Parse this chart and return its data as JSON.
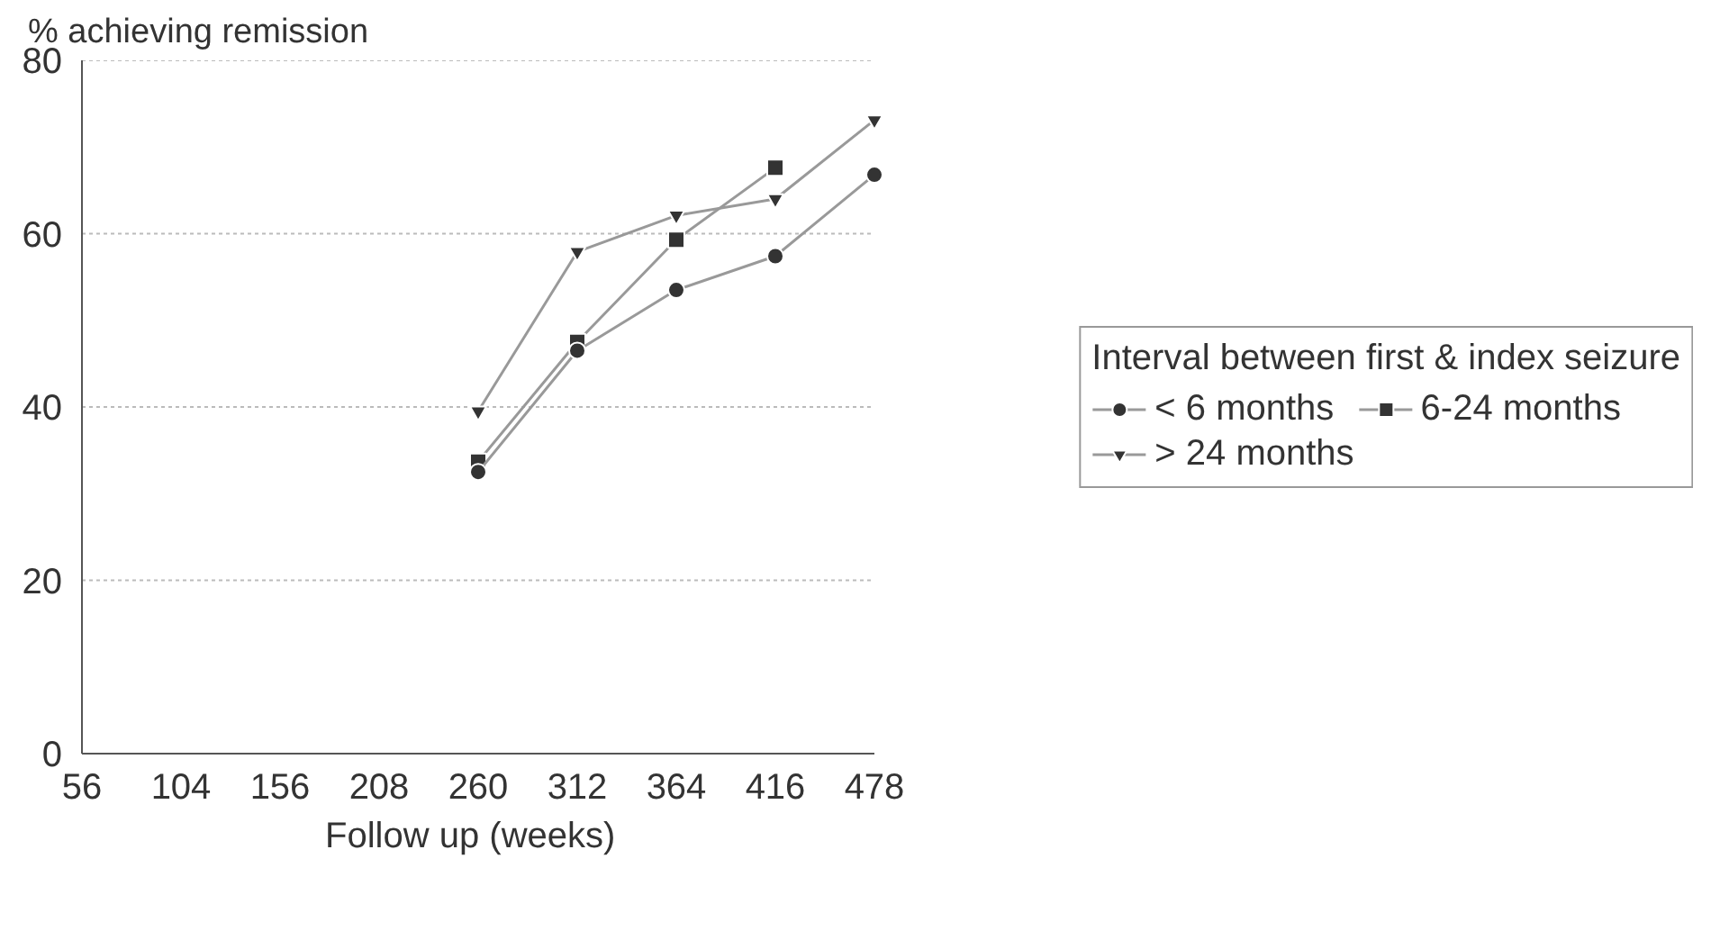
{
  "chart_data": {
    "type": "line",
    "ylabel": "% achieving remission",
    "xlabel": "Follow up (weeks)",
    "legend_title": "Interval between first & index seizure",
    "categories": [
      "56",
      "104",
      "156",
      "208",
      "260",
      "312",
      "364",
      "416",
      "478"
    ],
    "ylim": [
      0,
      80
    ],
    "yticks": [
      0,
      20,
      40,
      60,
      80
    ],
    "grid": "y",
    "legend": "right",
    "series": [
      {
        "name": "< 6 months",
        "color": "#333333",
        "marker": "circle",
        "values": [
          null,
          null,
          null,
          null,
          32.5,
          46.5,
          53.5,
          57.4,
          66.8
        ]
      },
      {
        "name": "6-24 months",
        "color": "#333333",
        "marker": "square",
        "values": [
          null,
          null,
          null,
          null,
          33.7,
          47.5,
          59.3,
          67.6,
          null
        ]
      },
      {
        "name": "> 24 months",
        "color": "#333333",
        "marker": "triangle",
        "values": [
          null,
          null,
          null,
          null,
          39.5,
          57.9,
          62.1,
          64.0,
          73.1
        ]
      }
    ]
  }
}
